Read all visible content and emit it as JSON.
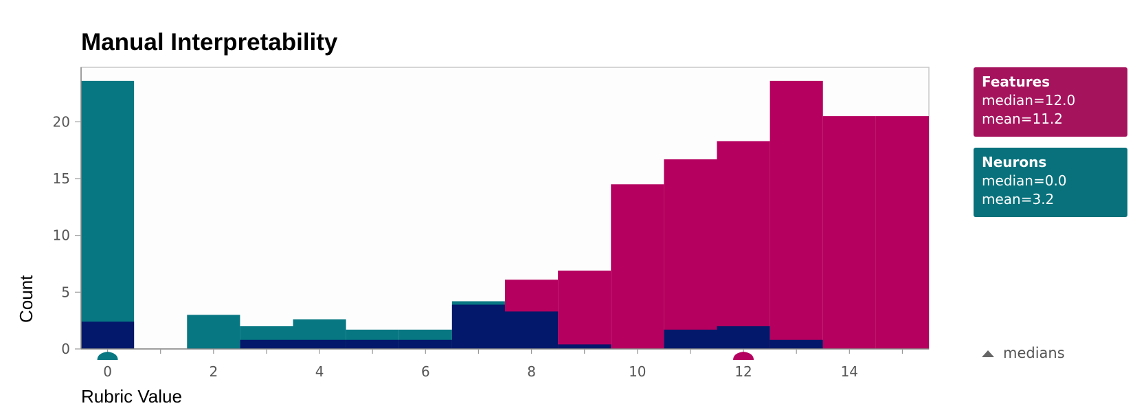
{
  "chart_data": {
    "type": "bar",
    "title": "Manual Interpretability",
    "xlabel": "Rubric Value",
    "ylabel": "Count",
    "xlim": [
      -0.5,
      15.5
    ],
    "ylim": [
      0,
      24.8
    ],
    "x_ticks": [
      0,
      2,
      4,
      6,
      8,
      10,
      12,
      14
    ],
    "y_ticks": [
      0,
      5,
      10,
      15,
      20
    ],
    "grid": false,
    "legend_position": "right",
    "series": [
      {
        "name": "Features",
        "color": "#B5005F",
        "values": [
          0,
          0,
          0,
          0,
          0,
          0,
          0,
          0,
          6.1,
          6.9,
          14.5,
          16.7,
          18.3,
          23.6,
          20.5,
          20.5
        ],
        "legend": {
          "name": "Features",
          "median": "median=12.0",
          "mean": "mean=11.2"
        },
        "median_marker": 12
      },
      {
        "name": "Neurons",
        "color": "#077782",
        "values": [
          23.6,
          0,
          3.0,
          2.0,
          2.6,
          1.7,
          1.7,
          4.2,
          0,
          0,
          0,
          0,
          0,
          0,
          0,
          0
        ],
        "legend": {
          "name": "Neurons",
          "median": "median=0.0",
          "mean": "mean=3.2"
        },
        "median_marker": 0
      },
      {
        "name": "",
        "color": "#03186A",
        "values": [
          2.4,
          0,
          0,
          0.8,
          0.8,
          0.8,
          0.8,
          3.9,
          3.3,
          0.4,
          0,
          1.7,
          2.0,
          0.8,
          0,
          0
        ]
      }
    ],
    "medians_label": "medians"
  }
}
